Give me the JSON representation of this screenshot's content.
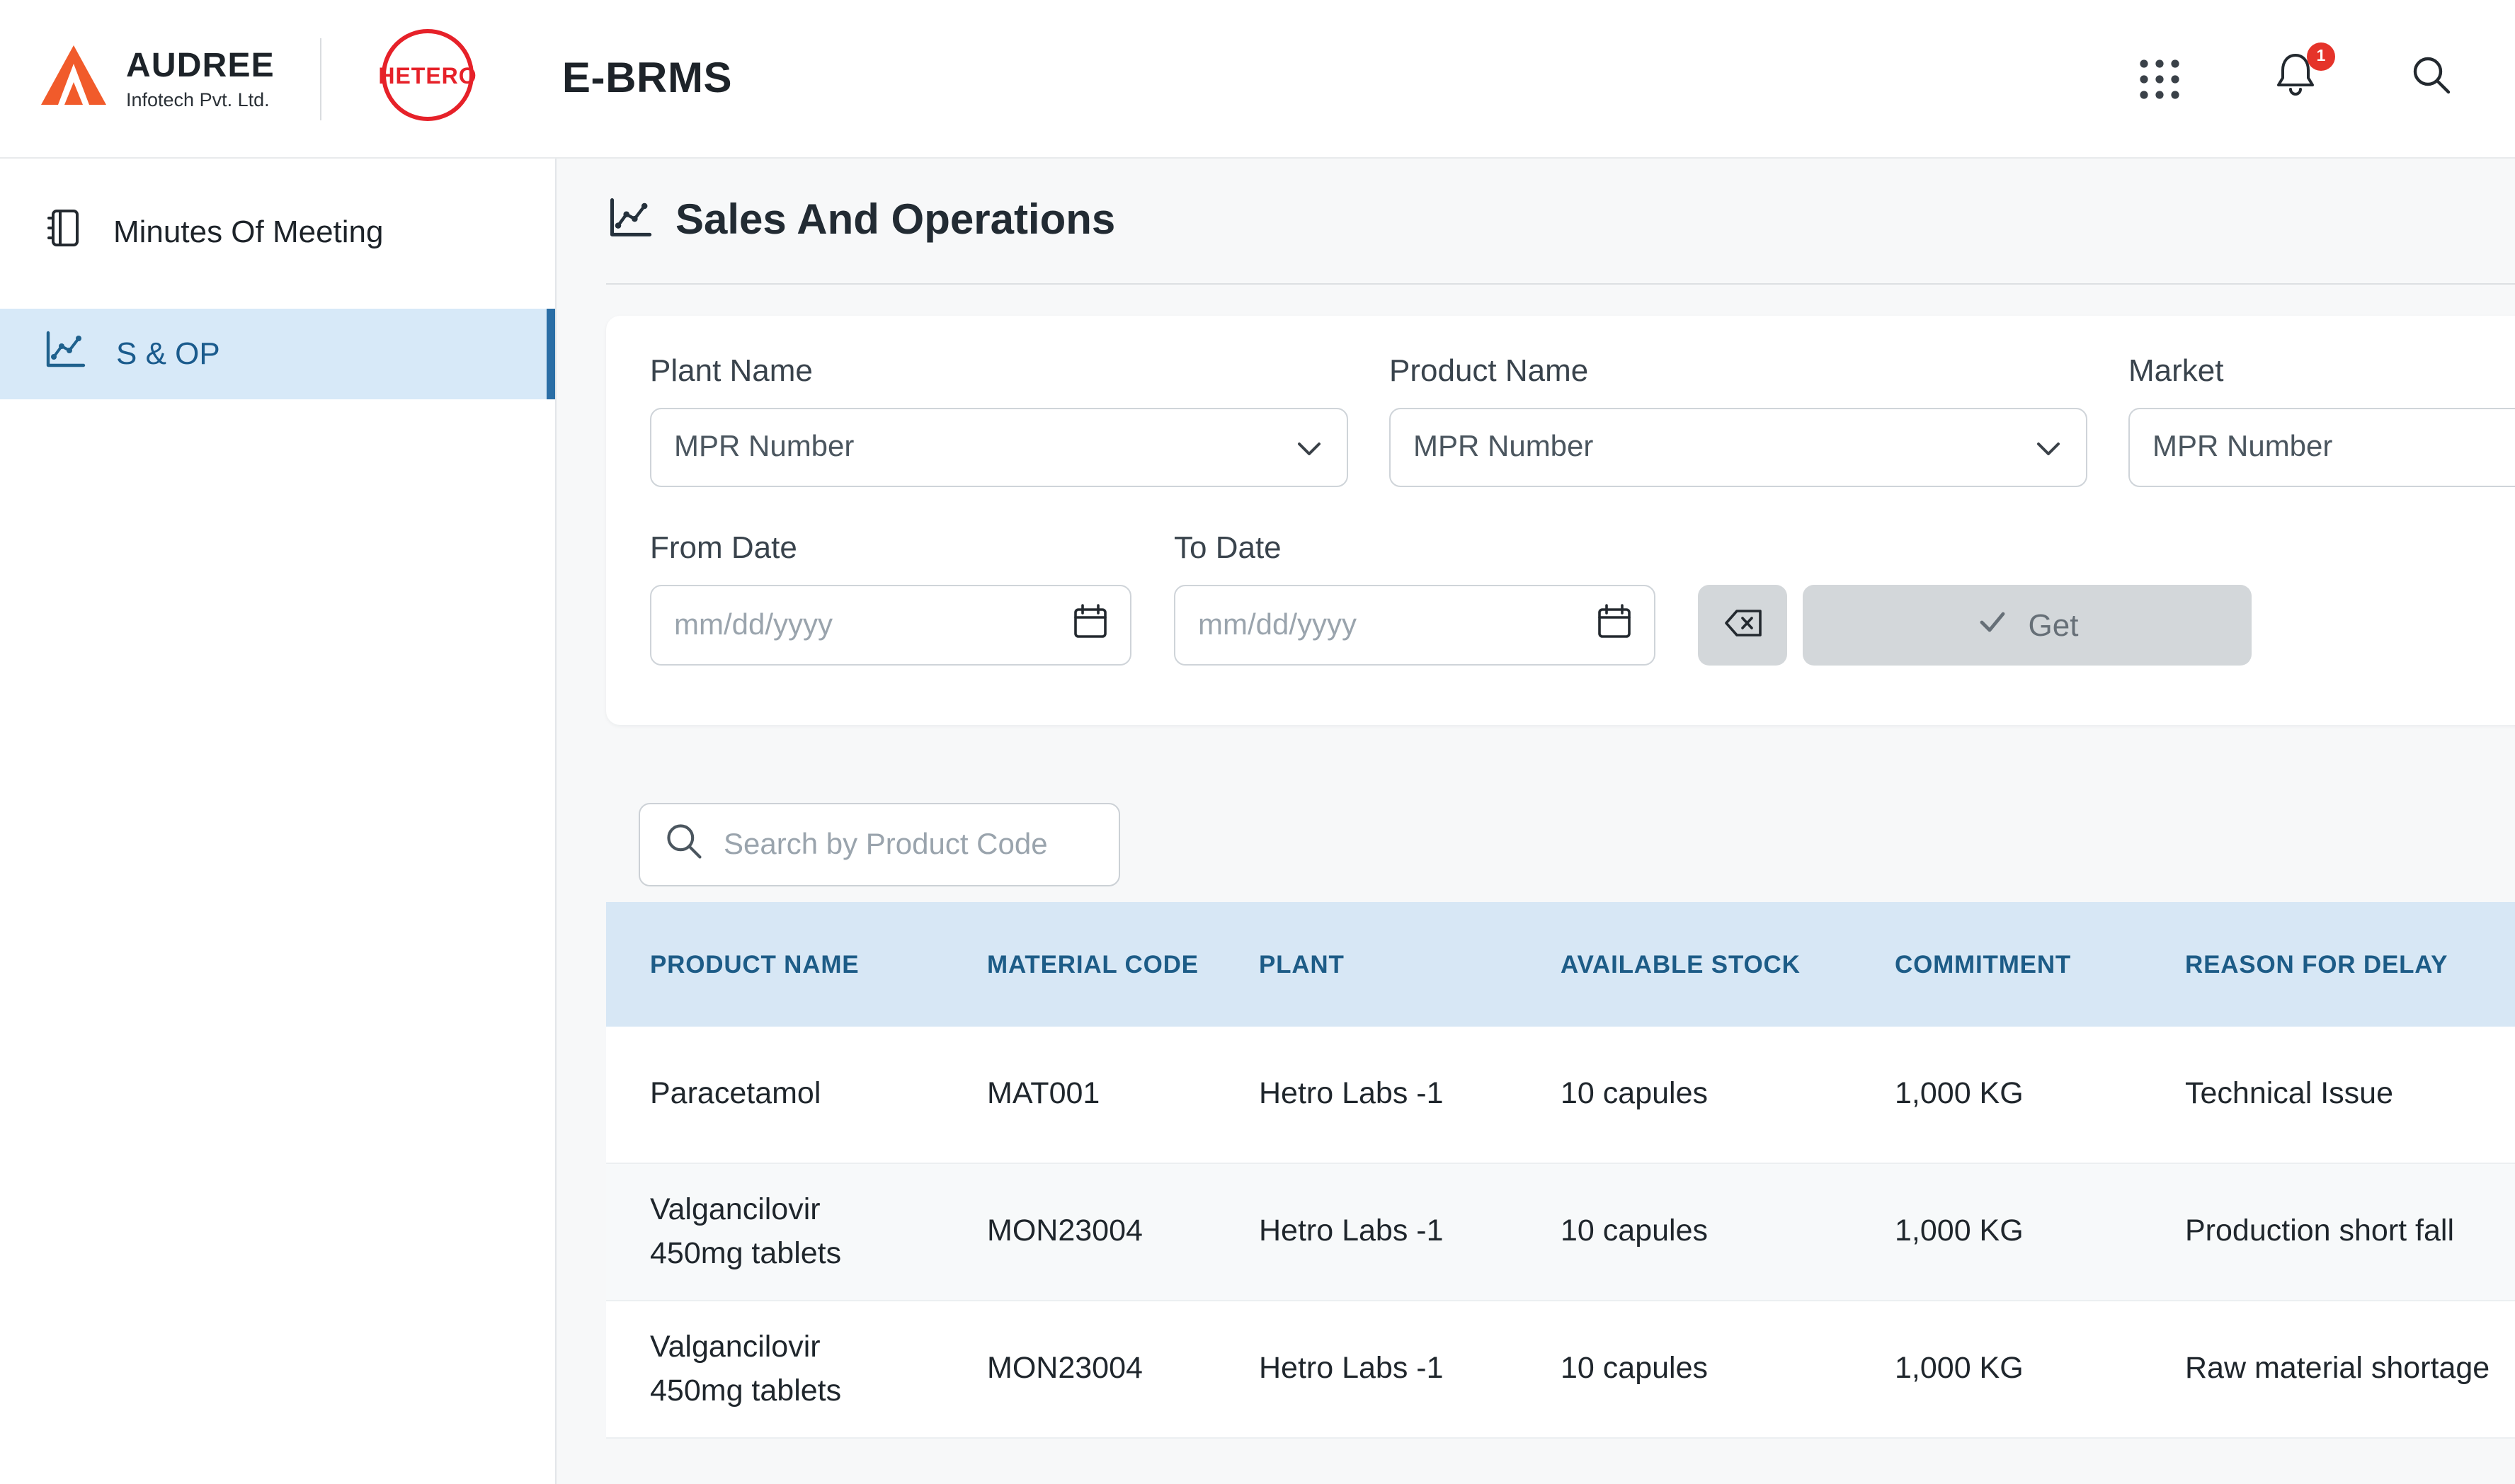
{
  "colors": {
    "brand_orange": "#F15B2B",
    "hetero_red": "#E62129",
    "accent_blue": "#2A6EA6",
    "active_item_bg": "#D7E9F8",
    "table_header_bg": "#D7E7F5",
    "table_header_text": "#1D5C87",
    "badge_red": "#E5332A"
  },
  "header": {
    "audree_name": "AUDREE",
    "audree_subtitle": "Infotech Pvt. Ltd.",
    "hetero_label": "HETERO",
    "app_title": "E-BRMS",
    "notification_count": "1",
    "icons": [
      "apps-grid-icon",
      "bell-icon",
      "search-icon"
    ]
  },
  "sidebar": {
    "items": [
      {
        "label": "Minutes Of Meeting",
        "icon": "notebook-icon",
        "active": false
      },
      {
        "label": "S & OP",
        "icon": "sop-chart-icon",
        "active": true
      }
    ]
  },
  "main": {
    "page_title": "Sales And Operations",
    "page_icon": "sop-chart-icon",
    "filters": {
      "plant_label": "Plant Name",
      "plant_value": "MPR Number",
      "product_label": "Product Name",
      "product_value": "MPR Number",
      "market_label": "Market",
      "market_value": "MPR Number",
      "from_date_label": "From Date",
      "to_date_label": "To Date",
      "date_placeholder": "mm/dd/yyyy",
      "get_label": "Get"
    },
    "search_placeholder": "Search by Product Code",
    "table": {
      "columns": [
        "PRODUCT NAME",
        "MATERIAL CODE",
        "PLANT",
        "AVAILABLE STOCK",
        "COMMITMENT",
        "REASON FOR DELAY"
      ],
      "rows": [
        {
          "product": "Paracetamol",
          "material_code": "MAT001",
          "plant": "Hetro Labs -1",
          "available_stock": "10 capules",
          "commitment": "1,000 KG",
          "reason": "Technical Issue"
        },
        {
          "product": "Valgancilovir 450mg tablets",
          "material_code": "MON23004",
          "plant": "Hetro Labs -1",
          "available_stock": "10 capules",
          "commitment": "1,000 KG",
          "reason": "Production short fall"
        },
        {
          "product": "Valgancilovir 450mg tablets",
          "material_code": "MON23004",
          "plant": "Hetro Labs -1",
          "available_stock": "10 capules",
          "commitment": "1,000 KG",
          "reason": "Raw material shortage"
        }
      ]
    }
  }
}
